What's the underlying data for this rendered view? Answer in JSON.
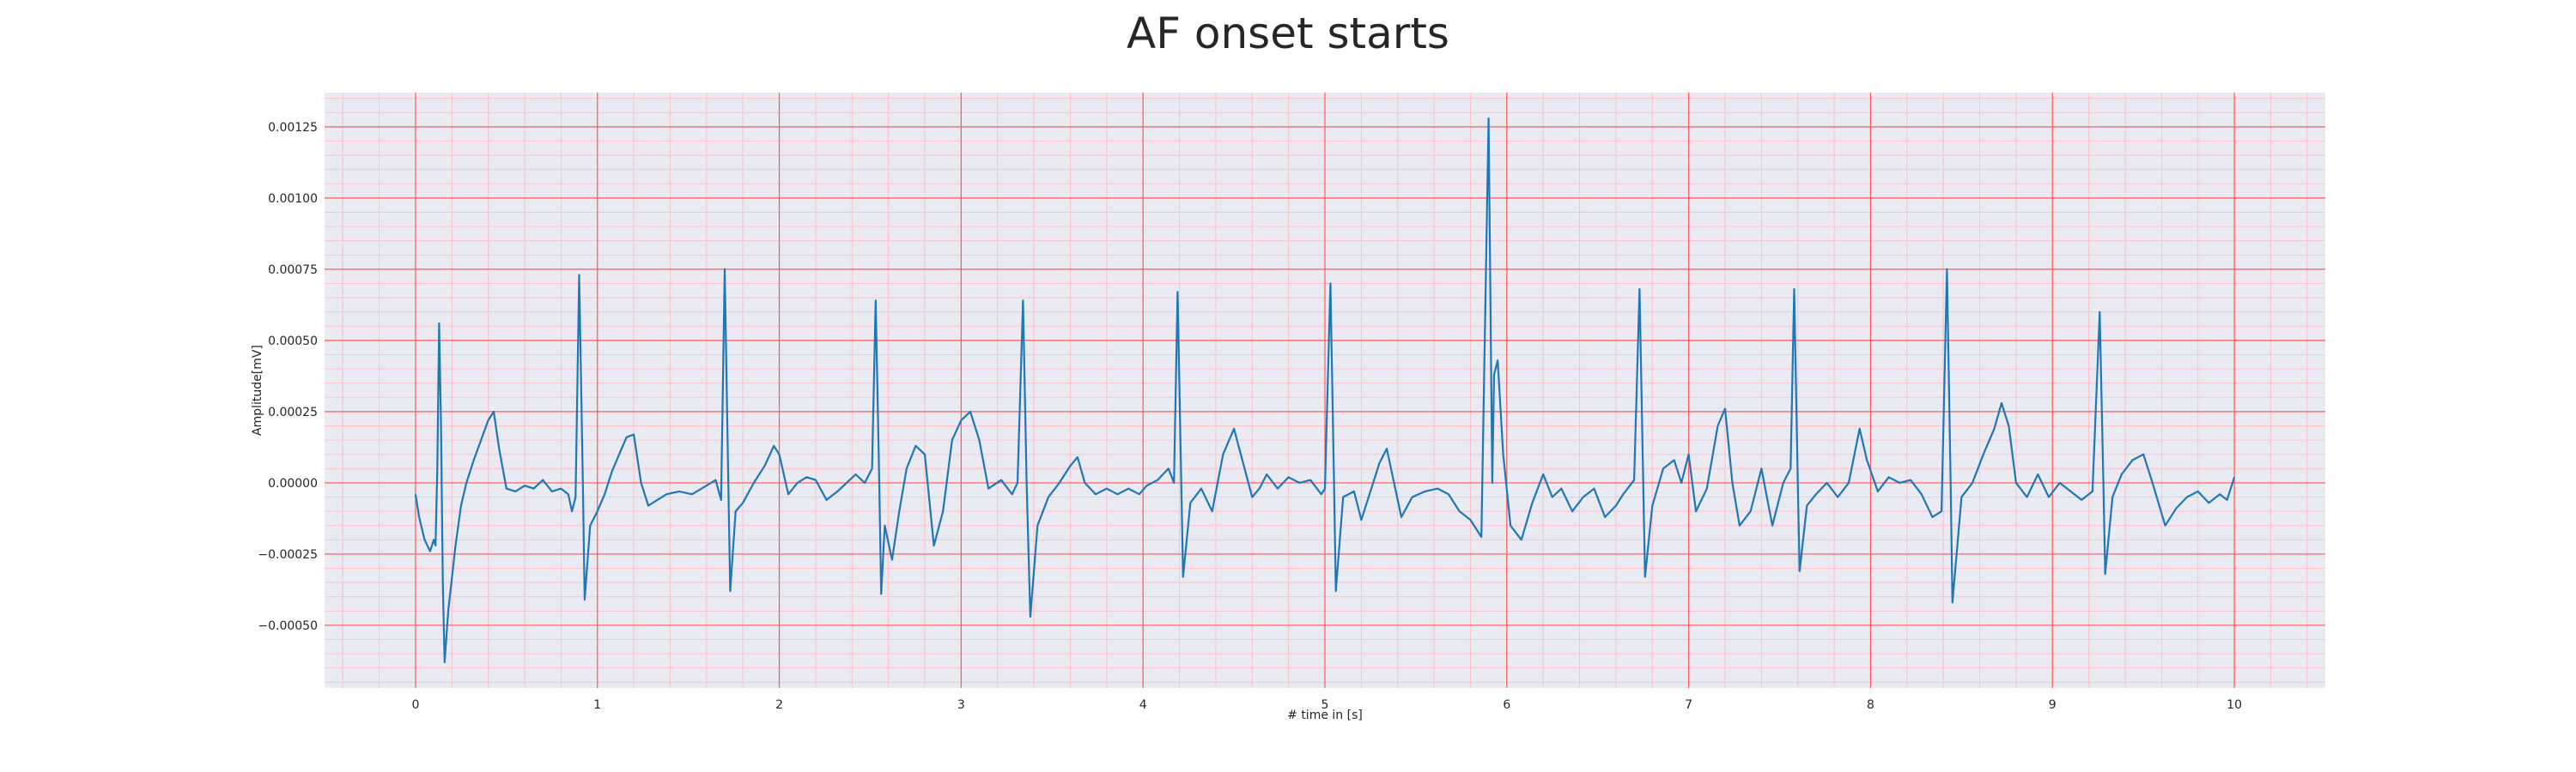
{
  "chart_data": {
    "type": "line",
    "title": "AF onset starts",
    "xlabel": "# time in [s]",
    "ylabel": "Amplitude[mV]",
    "xlim": [
      -0.5,
      10.5
    ],
    "ylim": [
      -0.00072,
      0.00137
    ],
    "x_ticks": [
      0,
      1,
      2,
      3,
      4,
      5,
      6,
      7,
      8,
      9,
      10
    ],
    "x_tick_labels": [
      "0",
      "1",
      "2",
      "3",
      "4",
      "5",
      "6",
      "7",
      "8",
      "9",
      "10"
    ],
    "y_ticks": [
      -0.0005,
      -0.00025,
      0.0,
      0.00025,
      0.0005,
      0.00075,
      0.001,
      0.00125
    ],
    "y_tick_labels": [
      "−0.00050",
      "−0.00025",
      "0.00000",
      "0.00025",
      "0.00050",
      "0.00075",
      "0.00100",
      "0.00125"
    ],
    "x_minor_step": 0.2,
    "y_minor_step": 5e-05,
    "grid": true,
    "colors": {
      "background": "#eaeaf2",
      "major_grid": "#ff5a5a",
      "minor_grid": "#ffc0cb",
      "line": "#1f77b4"
    },
    "series": [
      {
        "points": [
          [
            0.0,
            -4e-05
          ],
          [
            0.02,
            -0.00012
          ],
          [
            0.05,
            -0.0002
          ],
          [
            0.08,
            -0.00024
          ],
          [
            0.1,
            -0.0002
          ],
          [
            0.11,
            -0.00022
          ],
          [
            0.12,
            5e-05
          ],
          [
            0.13,
            0.00056
          ],
          [
            0.14,
            0.0002
          ],
          [
            0.15,
            -0.00035
          ],
          [
            0.16,
            -0.00063
          ],
          [
            0.18,
            -0.00045
          ],
          [
            0.22,
            -0.00022
          ],
          [
            0.25,
            -8e-05
          ],
          [
            0.28,
            0.0
          ],
          [
            0.32,
            8e-05
          ],
          [
            0.36,
            0.00015
          ],
          [
            0.4,
            0.00022
          ],
          [
            0.43,
            0.00025
          ],
          [
            0.46,
            0.00012
          ],
          [
            0.5,
            -2e-05
          ],
          [
            0.55,
            -3e-05
          ],
          [
            0.6,
            -1e-05
          ],
          [
            0.65,
            -2e-05
          ],
          [
            0.7,
            1e-05
          ],
          [
            0.75,
            -3e-05
          ],
          [
            0.8,
            -2e-05
          ],
          [
            0.84,
            -4e-05
          ],
          [
            0.86,
            -0.0001
          ],
          [
            0.88,
            -5e-05
          ],
          [
            0.9,
            0.00073
          ],
          [
            0.92,
            0.0
          ],
          [
            0.93,
            -0.00041
          ],
          [
            0.96,
            -0.00015
          ],
          [
            1.0,
            -0.0001
          ],
          [
            1.04,
            -4e-05
          ],
          [
            1.08,
            4e-05
          ],
          [
            1.12,
            0.0001
          ],
          [
            1.16,
            0.00016
          ],
          [
            1.2,
            0.00017
          ],
          [
            1.24,
            0.0
          ],
          [
            1.28,
            -8e-05
          ],
          [
            1.33,
            -6e-05
          ],
          [
            1.38,
            -4e-05
          ],
          [
            1.45,
            -3e-05
          ],
          [
            1.52,
            -4e-05
          ],
          [
            1.6,
            -1e-05
          ],
          [
            1.65,
            1e-05
          ],
          [
            1.68,
            -6e-05
          ],
          [
            1.7,
            0.00075
          ],
          [
            1.72,
            0.0
          ],
          [
            1.73,
            -0.00038
          ],
          [
            1.76,
            -0.0001
          ],
          [
            1.8,
            -7e-05
          ],
          [
            1.86,
            0.0
          ],
          [
            1.92,
            6e-05
          ],
          [
            1.97,
            0.00013
          ],
          [
            2.0,
            0.0001
          ],
          [
            2.05,
            -4e-05
          ],
          [
            2.1,
            0.0
          ],
          [
            2.15,
            2e-05
          ],
          [
            2.2,
            1e-05
          ],
          [
            2.26,
            -6e-05
          ],
          [
            2.32,
            -3e-05
          ],
          [
            2.37,
            0.0
          ],
          [
            2.42,
            3e-05
          ],
          [
            2.47,
            0.0
          ],
          [
            2.51,
            5e-05
          ],
          [
            2.53,
            0.00064
          ],
          [
            2.55,
            0.0
          ],
          [
            2.56,
            -0.00039
          ],
          [
            2.58,
            -0.00015
          ],
          [
            2.62,
            -0.00027
          ],
          [
            2.66,
            -0.0001
          ],
          [
            2.7,
            5e-05
          ],
          [
            2.75,
            0.00013
          ],
          [
            2.8,
            0.0001
          ],
          [
            2.85,
            -0.00022
          ],
          [
            2.9,
            -0.0001
          ],
          [
            2.95,
            0.00015
          ],
          [
            3.0,
            0.00022
          ],
          [
            3.05,
            0.00025
          ],
          [
            3.1,
            0.00015
          ],
          [
            3.15,
            -2e-05
          ],
          [
            3.22,
            1e-05
          ],
          [
            3.28,
            -4e-05
          ],
          [
            3.31,
            0.0
          ],
          [
            3.34,
            0.00064
          ],
          [
            3.36,
            0.0
          ],
          [
            3.38,
            -0.00047
          ],
          [
            3.42,
            -0.00015
          ],
          [
            3.48,
            -5e-05
          ],
          [
            3.54,
            0.0
          ],
          [
            3.6,
            6e-05
          ],
          [
            3.64,
            9e-05
          ],
          [
            3.68,
            0.0
          ],
          [
            3.74,
            -4e-05
          ],
          [
            3.8,
            -2e-05
          ],
          [
            3.86,
            -4e-05
          ],
          [
            3.92,
            -2e-05
          ],
          [
            3.98,
            -4e-05
          ],
          [
            4.02,
            -1e-05
          ],
          [
            4.08,
            1e-05
          ],
          [
            4.14,
            5e-05
          ],
          [
            4.17,
            0.0
          ],
          [
            4.19,
            0.00067
          ],
          [
            4.21,
            0.0
          ],
          [
            4.22,
            -0.00033
          ],
          [
            4.26,
            -7e-05
          ],
          [
            4.32,
            -2e-05
          ],
          [
            4.38,
            -0.0001
          ],
          [
            4.44,
            0.0001
          ],
          [
            4.5,
            0.00019
          ],
          [
            4.55,
            7e-05
          ],
          [
            4.6,
            -5e-05
          ],
          [
            4.64,
            -2e-05
          ],
          [
            4.68,
            3e-05
          ],
          [
            4.74,
            -2e-05
          ],
          [
            4.8,
            2e-05
          ],
          [
            4.86,
            0.0
          ],
          [
            4.92,
            1e-05
          ],
          [
            4.98,
            -4e-05
          ],
          [
            5.0,
            -2e-05
          ],
          [
            5.03,
            0.0007
          ],
          [
            5.05,
            0.0
          ],
          [
            5.06,
            -0.00038
          ],
          [
            5.1,
            -5e-05
          ],
          [
            5.16,
            -3e-05
          ],
          [
            5.2,
            -0.00013
          ],
          [
            5.25,
            -3e-05
          ],
          [
            5.3,
            7e-05
          ],
          [
            5.34,
            0.00012
          ],
          [
            5.38,
            0.0
          ],
          [
            5.42,
            -0.00012
          ],
          [
            5.48,
            -5e-05
          ],
          [
            5.55,
            -3e-05
          ],
          [
            5.62,
            -2e-05
          ],
          [
            5.68,
            -4e-05
          ],
          [
            5.74,
            -0.0001
          ],
          [
            5.8,
            -0.00013
          ],
          [
            5.86,
            -0.00019
          ],
          [
            5.9,
            0.00128
          ],
          [
            5.92,
            0.0
          ],
          [
            5.93,
            0.00038
          ],
          [
            5.95,
            0.00043
          ],
          [
            5.98,
            0.0001
          ],
          [
            6.02,
            -0.00015
          ],
          [
            6.08,
            -0.0002
          ],
          [
            6.14,
            -7e-05
          ],
          [
            6.2,
            3e-05
          ],
          [
            6.25,
            -5e-05
          ],
          [
            6.3,
            -2e-05
          ],
          [
            6.36,
            -0.0001
          ],
          [
            6.42,
            -5e-05
          ],
          [
            6.48,
            -2e-05
          ],
          [
            6.54,
            -0.00012
          ],
          [
            6.6,
            -8e-05
          ],
          [
            6.64,
            -4e-05
          ],
          [
            6.7,
            1e-05
          ],
          [
            6.73,
            0.00068
          ],
          [
            6.75,
            0.0
          ],
          [
            6.76,
            -0.00033
          ],
          [
            6.8,
            -8e-05
          ],
          [
            6.86,
            5e-05
          ],
          [
            6.92,
            8e-05
          ],
          [
            6.96,
            0.0
          ],
          [
            7.0,
            0.0001
          ],
          [
            7.04,
            -0.0001
          ],
          [
            7.1,
            -2e-05
          ],
          [
            7.16,
            0.0002
          ],
          [
            7.2,
            0.00026
          ],
          [
            7.24,
            0.0
          ],
          [
            7.28,
            -0.00015
          ],
          [
            7.34,
            -0.0001
          ],
          [
            7.4,
            5e-05
          ],
          [
            7.46,
            -0.00015
          ],
          [
            7.52,
            0.0
          ],
          [
            7.56,
            5e-05
          ],
          [
            7.58,
            0.00068
          ],
          [
            7.6,
            0.0
          ],
          [
            7.61,
            -0.00031
          ],
          [
            7.65,
            -8e-05
          ],
          [
            7.7,
            -4e-05
          ],
          [
            7.76,
            0.0
          ],
          [
            7.82,
            -5e-05
          ],
          [
            7.88,
            0.0
          ],
          [
            7.94,
            0.00019
          ],
          [
            7.98,
            8e-05
          ],
          [
            8.04,
            -3e-05
          ],
          [
            8.1,
            2e-05
          ],
          [
            8.16,
            0.0
          ],
          [
            8.22,
            1e-05
          ],
          [
            8.28,
            -4e-05
          ],
          [
            8.34,
            -0.00012
          ],
          [
            8.39,
            -0.0001
          ],
          [
            8.42,
            0.00075
          ],
          [
            8.44,
            0.0
          ],
          [
            8.45,
            -0.00042
          ],
          [
            8.5,
            -5e-05
          ],
          [
            8.56,
            0.0
          ],
          [
            8.62,
            0.0001
          ],
          [
            8.68,
            0.00019
          ],
          [
            8.72,
            0.00028
          ],
          [
            8.76,
            0.0002
          ],
          [
            8.8,
            0.0
          ],
          [
            8.86,
            -5e-05
          ],
          [
            8.92,
            3e-05
          ],
          [
            8.98,
            -5e-05
          ],
          [
            9.04,
            0.0
          ],
          [
            9.1,
            -3e-05
          ],
          [
            9.16,
            -6e-05
          ],
          [
            9.22,
            -3e-05
          ],
          [
            9.26,
            0.0006
          ],
          [
            9.28,
            0.0
          ],
          [
            9.29,
            -0.00032
          ],
          [
            9.33,
            -5e-05
          ],
          [
            9.38,
            3e-05
          ],
          [
            9.44,
            8e-05
          ],
          [
            9.5,
            0.0001
          ],
          [
            9.55,
            0.0
          ],
          [
            9.62,
            -0.00015
          ],
          [
            9.68,
            -9e-05
          ],
          [
            9.74,
            -5e-05
          ],
          [
            9.8,
            -3e-05
          ],
          [
            9.86,
            -7e-05
          ],
          [
            9.92,
            -4e-05
          ],
          [
            9.96,
            -6e-05
          ],
          [
            10.0,
            2e-05
          ]
        ]
      }
    ]
  }
}
